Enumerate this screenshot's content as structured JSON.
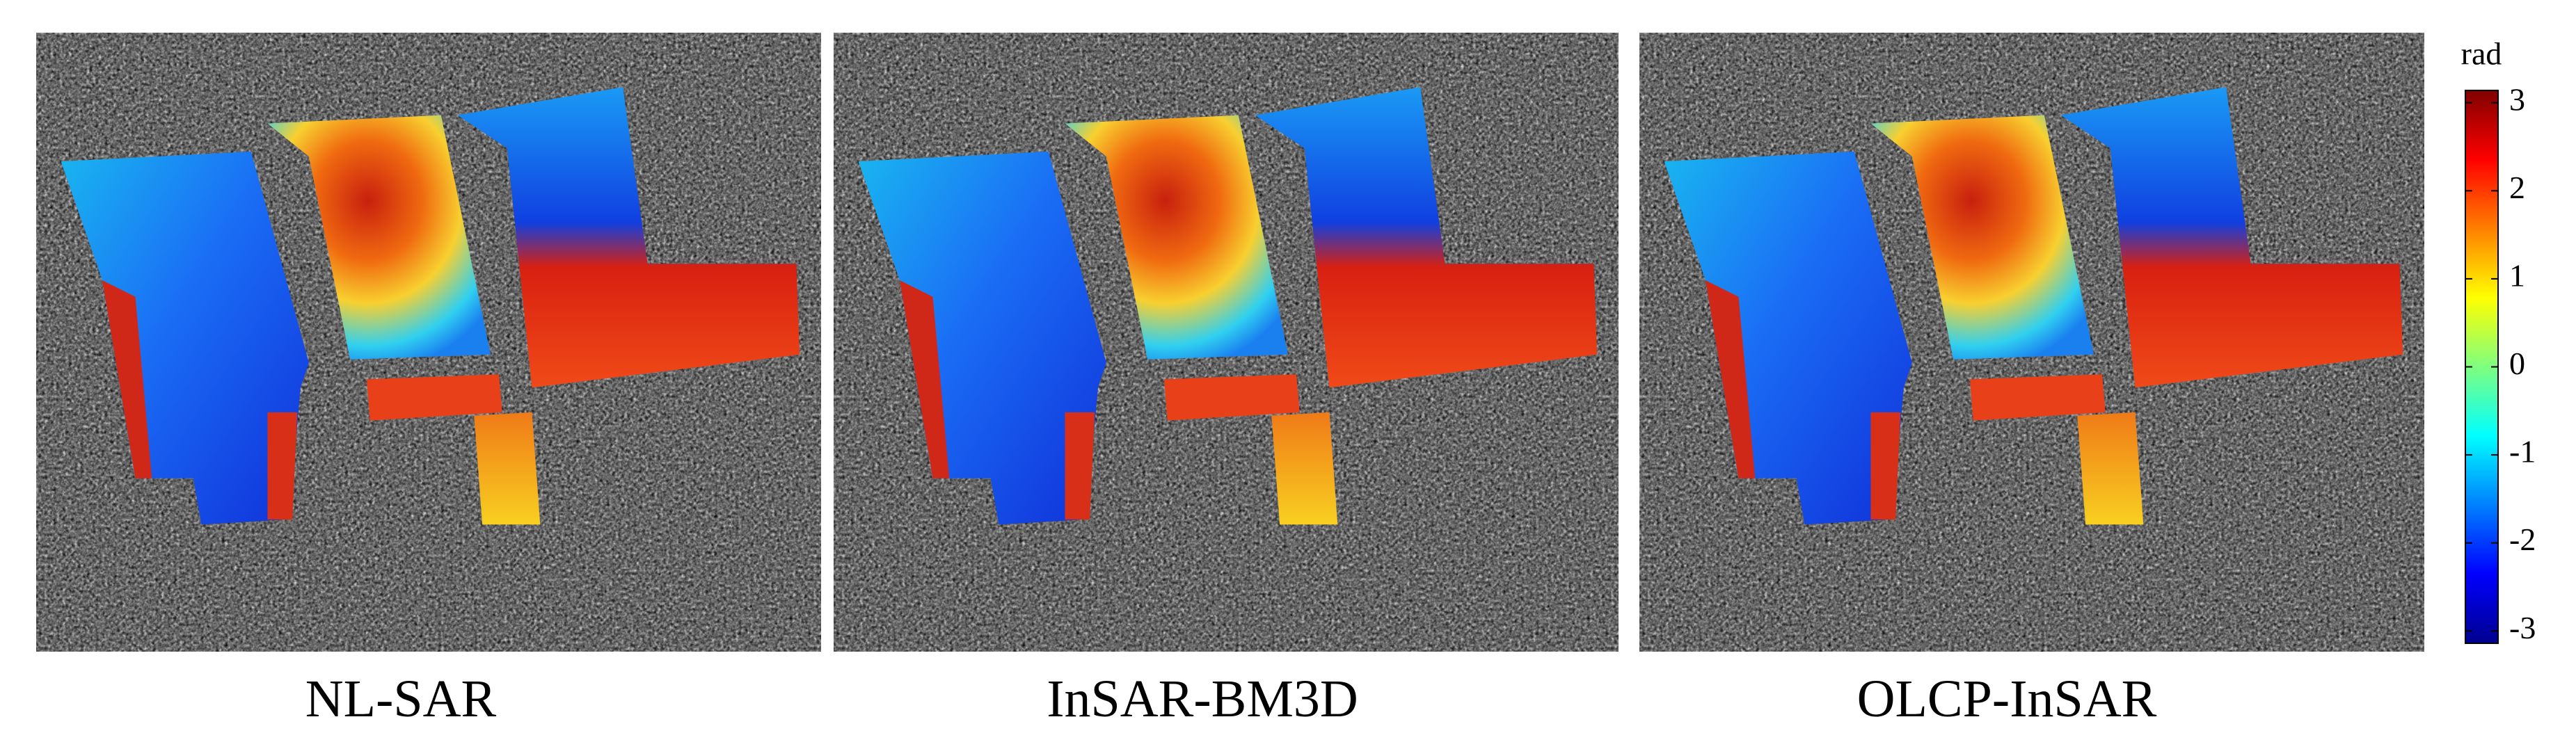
{
  "panels": [
    {
      "label": "NL-SAR"
    },
    {
      "label": "InSAR-BM3D"
    },
    {
      "label": "OLCP-InSAR"
    }
  ],
  "colorbar": {
    "label": "rad",
    "lim": [
      -3.14,
      3.14
    ],
    "ticks": [
      3,
      2,
      1,
      0,
      -1,
      -2,
      -3
    ]
  }
}
